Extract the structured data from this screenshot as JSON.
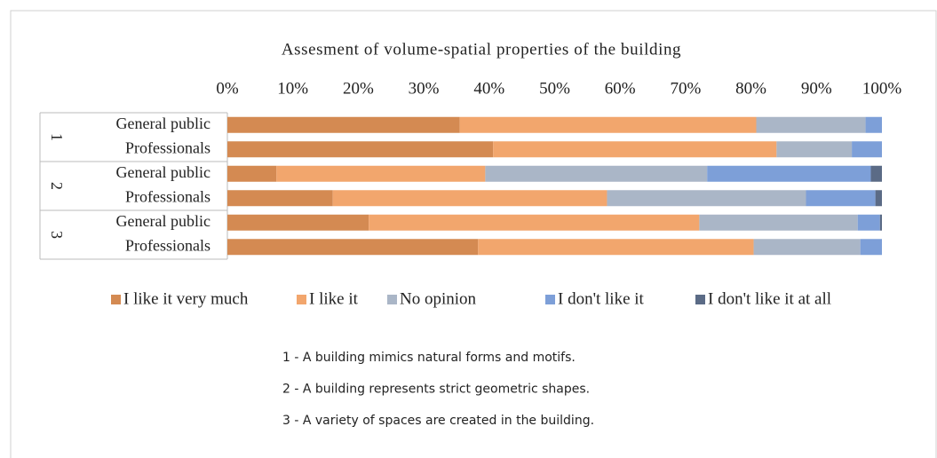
{
  "chart_data": {
    "type": "stacked-bar-horizontal",
    "title": "Assesment of volume-spatial properties of the building",
    "category_groups": [
      "1",
      "2",
      "3"
    ],
    "categories": [
      "General public",
      "Professionals",
      "General public",
      "Professionals",
      "General public",
      "Professionals"
    ],
    "series": [
      {
        "name": "I like it very much",
        "color": "#d48a52",
        "values": [
          35.5,
          40.6,
          7.5,
          16.1,
          21.6,
          38.3
        ]
      },
      {
        "name": "I like it",
        "color": "#f2a66d",
        "values": [
          45.3,
          43.3,
          31.9,
          41.9,
          50.5,
          42.1
        ]
      },
      {
        "name": "No opinion",
        "color": "#aab6c7",
        "values": [
          16.7,
          11.5,
          33.9,
          30.4,
          24.2,
          16.3
        ]
      },
      {
        "name": "I don't like it",
        "color": "#7d9fd8",
        "values": [
          2.5,
          4.6,
          25.0,
          10.6,
          3.4,
          3.3
        ]
      },
      {
        "name": "I don't like it at all",
        "color": "#5b6b86",
        "values": [
          0,
          0,
          1.7,
          1.0,
          0.3,
          0
        ]
      }
    ],
    "xlim": [
      0,
      100
    ],
    "xticks": [
      {
        "value": 0,
        "label": "0%"
      },
      {
        "value": 10,
        "label": "10%"
      },
      {
        "value": 20,
        "label": "20%"
      },
      {
        "value": 30,
        "label": "30%"
      },
      {
        "value": 40,
        "label": "40%"
      },
      {
        "value": 50,
        "label": "50%"
      },
      {
        "value": 60,
        "label": "60%"
      },
      {
        "value": 70,
        "label": "70%"
      },
      {
        "value": 80,
        "label": "80%"
      },
      {
        "value": 90,
        "label": "90%"
      },
      {
        "value": 100,
        "label": "100%"
      }
    ],
    "grid": false,
    "legend": "bottom",
    "notes": [
      "1 - A building mimics natural forms and motifs.",
      "2 - A building represents strict geometric shapes.",
      "3 - A variety of spaces are created in the building."
    ]
  }
}
